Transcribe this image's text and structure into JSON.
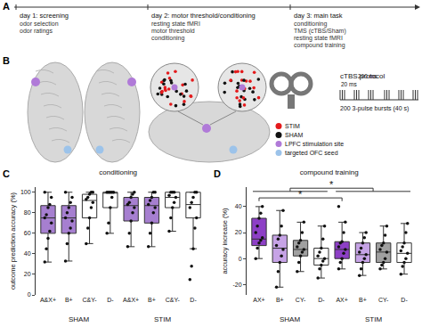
{
  "panel_labels": [
    "A",
    "B",
    "C",
    "D"
  ],
  "timeline": {
    "days": [
      {
        "title": "day 1: screening",
        "items": [
          "odor selection",
          "odor ratings"
        ]
      },
      {
        "title": "day 2: motor threshold/conditioning",
        "items": [
          "resting state fMRI",
          "motor threshold",
          "conditioning"
        ]
      },
      {
        "title": "day 3: main task",
        "items": [
          "conditioning",
          "TMS (cTBS/Sham)",
          "resting state fMRI",
          "compound training"
        ]
      }
    ]
  },
  "brain": {
    "legend": [
      {
        "label": "STIM",
        "color": "#e41a1c"
      },
      {
        "label": "SHAM",
        "color": "#111111"
      },
      {
        "label": "LPFC stimulation site",
        "color": "#b07ad8"
      },
      {
        "label": "targeted OFC seed",
        "color": "#9cc3ea"
      }
    ]
  },
  "ctbs": {
    "title": "cTBS protocol",
    "interval_labels": [
      "20 ms",
      "200 ms"
    ],
    "caption": "200 3-pulse bursts (40 s)"
  },
  "chart_data": [
    {
      "type": "box",
      "title": "conditioning",
      "y_label": "outcome prediction accuracy (%)",
      "categories": [
        "A&X+",
        "B+",
        "C&Y-",
        "D-",
        "A&X+",
        "B+",
        "C&Y-",
        "D-"
      ],
      "group_labels": [
        "SHAM",
        "STIM"
      ],
      "ylim": [
        0,
        105
      ],
      "yticks": [
        0,
        20,
        40,
        60,
        80,
        100
      ],
      "colors": [
        "#a67fd0",
        "#a67fd0",
        "#ffffff",
        "#ffffff",
        "#a67fd0",
        "#a67fd0",
        "#ffffff",
        "#ffffff"
      ],
      "boxes": [
        {
          "q1": 60,
          "median": 75,
          "q3": 87,
          "lower": 32,
          "upper": 100,
          "points": [
            32,
            45,
            55,
            62,
            70,
            75,
            78,
            85,
            88,
            95,
            100
          ]
        },
        {
          "q1": 60,
          "median": 75,
          "q3": 87,
          "lower": 33,
          "upper": 100,
          "points": [
            33,
            50,
            60,
            65,
            72,
            75,
            80,
            85,
            90,
            95,
            100
          ]
        },
        {
          "q1": 75,
          "median": 92,
          "q3": 98,
          "lower": 50,
          "upper": 100,
          "points": [
            50,
            65,
            75,
            85,
            90,
            93,
            95,
            98,
            100,
            100
          ]
        },
        {
          "q1": 85,
          "median": 100,
          "q3": 100,
          "lower": 60,
          "upper": 100,
          "points": [
            60,
            70,
            85,
            95,
            100,
            100,
            100,
            100,
            100
          ]
        },
        {
          "q1": 72,
          "median": 87,
          "q3": 95,
          "lower": 47,
          "upper": 100,
          "points": [
            47,
            60,
            72,
            80,
            85,
            88,
            90,
            95,
            98,
            100
          ]
        },
        {
          "q1": 70,
          "median": 87,
          "q3": 95,
          "lower": 47,
          "upper": 100,
          "points": [
            47,
            60,
            70,
            80,
            85,
            88,
            92,
            95,
            100,
            100
          ]
        },
        {
          "q1": 85,
          "median": 95,
          "q3": 100,
          "lower": 62,
          "upper": 100,
          "points": [
            62,
            75,
            85,
            90,
            95,
            97,
            100,
            100,
            100
          ]
        },
        {
          "q1": 75,
          "median": 88,
          "q3": 100,
          "lower": 45,
          "upper": 100,
          "points": [
            15,
            28,
            45,
            65,
            75,
            85,
            90,
            95,
            100,
            100
          ]
        }
      ]
    },
    {
      "type": "box",
      "title": "compound training",
      "y_label": "accuracy increase (%)",
      "categories": [
        "AX+",
        "B+",
        "CY-",
        "D-",
        "AX+",
        "B+",
        "CY-",
        "D-"
      ],
      "group_labels": [
        "SHAM",
        "STIM"
      ],
      "ylim": [
        -28,
        55
      ],
      "yticks": [
        -20,
        0,
        20,
        40
      ],
      "colors": [
        "#8d3fc6",
        "#c6a3e6",
        "#a0a0a0",
        "#ffffff",
        "#8d3fc6",
        "#c6a3e6",
        "#a0a0a0",
        "#ffffff"
      ],
      "comparisons": [
        {
          "label": "*",
          "from": [
            0,
            1,
            2,
            3
          ],
          "to": [
            4,
            5,
            6,
            7
          ]
        },
        {
          "label": "*",
          "from": [
            0
          ],
          "to": [
            4
          ]
        }
      ],
      "boxes": [
        {
          "q1": 10,
          "median": 15,
          "q3": 31,
          "lower": 0,
          "upper": 40,
          "points": [
            0,
            8,
            12,
            14,
            16,
            20,
            25,
            31,
            35,
            40
          ]
        },
        {
          "q1": -3,
          "median": 8,
          "q3": 18,
          "lower": -22,
          "upper": 37,
          "points": [
            -22,
            -10,
            -3,
            2,
            7,
            10,
            15,
            18,
            25,
            37
          ]
        },
        {
          "q1": 2,
          "median": 7,
          "q3": 14,
          "lower": -10,
          "upper": 28,
          "points": [
            -10,
            -3,
            2,
            5,
            7,
            9,
            12,
            14,
            20,
            28
          ]
        },
        {
          "q1": -5,
          "median": 0,
          "q3": 8,
          "lower": -15,
          "upper": 25,
          "points": [
            -15,
            -8,
            -5,
            -2,
            0,
            2,
            5,
            8,
            15,
            25
          ]
        },
        {
          "q1": 0,
          "median": 7,
          "q3": 13,
          "lower": -8,
          "upper": 28,
          "points": [
            -8,
            -3,
            0,
            4,
            7,
            9,
            12,
            13,
            20,
            28,
            40
          ]
        },
        {
          "q1": -3,
          "median": 3,
          "q3": 12,
          "lower": -13,
          "upper": 20,
          "points": [
            -13,
            -8,
            -3,
            0,
            3,
            5,
            8,
            12,
            16,
            20
          ]
        },
        {
          "q1": -3,
          "median": 5,
          "q3": 12,
          "lower": -8,
          "upper": 25,
          "points": [
            -8,
            -5,
            -3,
            0,
            5,
            7,
            10,
            12,
            18,
            25
          ]
        },
        {
          "q1": -3,
          "median": 4,
          "q3": 12,
          "lower": -12,
          "upper": 27,
          "points": [
            -12,
            -6,
            -3,
            0,
            4,
            6,
            9,
            12,
            20,
            27
          ]
        }
      ]
    }
  ]
}
